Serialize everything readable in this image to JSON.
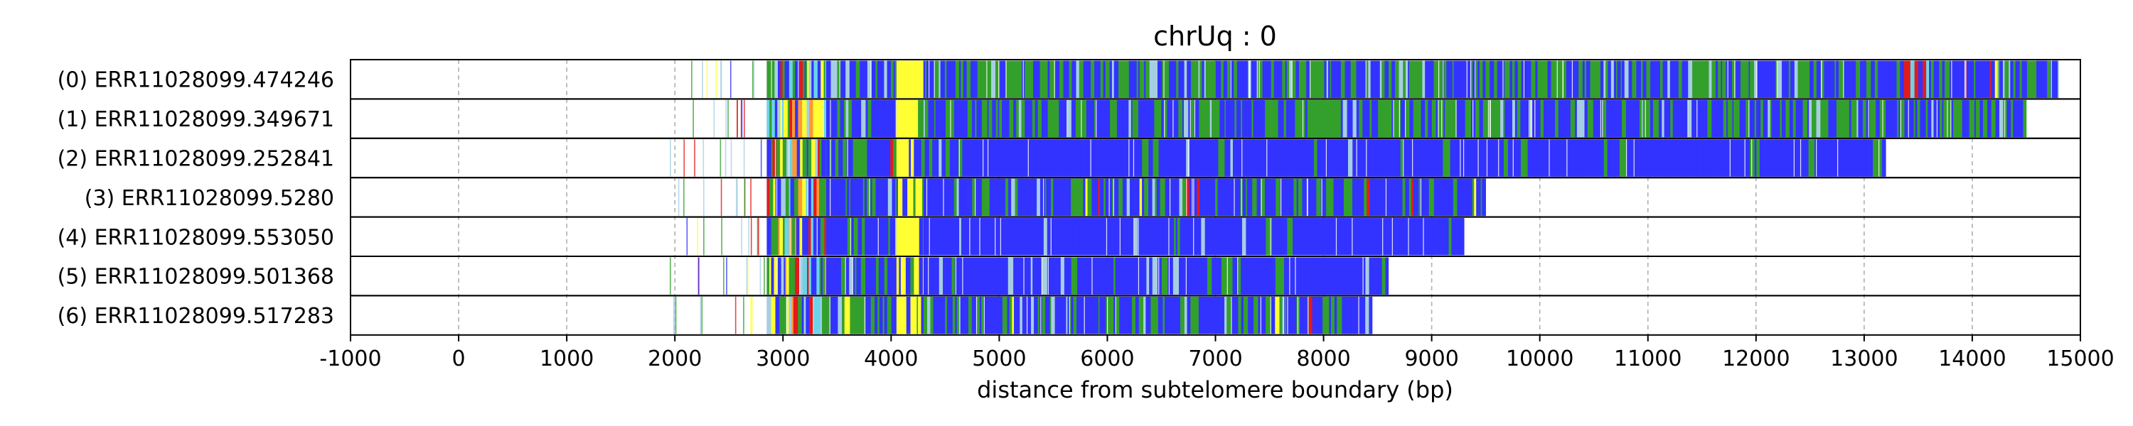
{
  "chart_data": {
    "type": "bar",
    "title": "chrUq : 0",
    "xlabel": "distance from subtelomere boundary (bp)",
    "ylabel": "",
    "xlim": [
      -1000,
      15000
    ],
    "xticks": [
      -1000,
      0,
      1000,
      2000,
      3000,
      4000,
      5000,
      6000,
      7000,
      8000,
      9000,
      10000,
      11000,
      12000,
      13000,
      14000,
      15000
    ],
    "grid": "vertical dashed",
    "colors": {
      "blue": "#3333ff",
      "green": "#33a02c",
      "yellow": "#ffff33",
      "red": "#e31a1c",
      "cyan": "#6ad4e8",
      "orange": "#ff9933",
      "light_blue": "#a6cee3",
      "gray": "#cccccc"
    },
    "reads": [
      {
        "label": "(0) ERR11028099.474246",
        "end": 14800,
        "segments": [
          [
            2850,
            3400,
            "mixed"
          ],
          [
            3400,
            4050,
            "blue_green"
          ],
          [
            4050,
            4300,
            "yellow"
          ],
          [
            4300,
            13300,
            "blue_green_dense"
          ],
          [
            13300,
            13600,
            "red_mixed"
          ],
          [
            13600,
            14800,
            "blue_green"
          ]
        ]
      },
      {
        "label": "(1) ERR11028099.349671",
        "end": 14500,
        "segments": [
          [
            2850,
            3400,
            "mixed"
          ],
          [
            3400,
            4050,
            "blue_green"
          ],
          [
            4050,
            4300,
            "yellow"
          ],
          [
            4300,
            14500,
            "blue_green_dense"
          ]
        ]
      },
      {
        "label": "(2) ERR11028099.252841",
        "end": 13200,
        "segments": [
          [
            2850,
            3400,
            "mixed"
          ],
          [
            3400,
            4050,
            "blue_green"
          ],
          [
            4050,
            4300,
            "yellow"
          ],
          [
            4300,
            4700,
            "blue_green"
          ],
          [
            4700,
            13200,
            "blue"
          ]
        ]
      },
      {
        "label": "(3) ERR11028099.5280",
        "end": 9500,
        "segments": [
          [
            2850,
            3400,
            "mixed"
          ],
          [
            3400,
            4050,
            "blue_green"
          ],
          [
            4050,
            4300,
            "yellow"
          ],
          [
            4300,
            9500,
            "blue_green"
          ]
        ]
      },
      {
        "label": "(4) ERR11028099.553050",
        "end": 9300,
        "segments": [
          [
            2850,
            3400,
            "mixed"
          ],
          [
            3400,
            4050,
            "blue_green"
          ],
          [
            4050,
            4300,
            "yellow"
          ],
          [
            4300,
            9300,
            "blue"
          ]
        ]
      },
      {
        "label": "(5) ERR11028099.501368",
        "end": 8600,
        "segments": [
          [
            2850,
            3400,
            "mixed"
          ],
          [
            3400,
            4050,
            "blue_green"
          ],
          [
            4050,
            4300,
            "yellow"
          ],
          [
            4300,
            8600,
            "blue"
          ]
        ]
      },
      {
        "label": "(6) ERR11028099.517283",
        "end": 8450,
        "segments": [
          [
            2850,
            3400,
            "mixed"
          ],
          [
            3400,
            4050,
            "blue_green"
          ],
          [
            4050,
            4300,
            "yellow"
          ],
          [
            4300,
            8450,
            "blue_green"
          ]
        ]
      }
    ]
  }
}
